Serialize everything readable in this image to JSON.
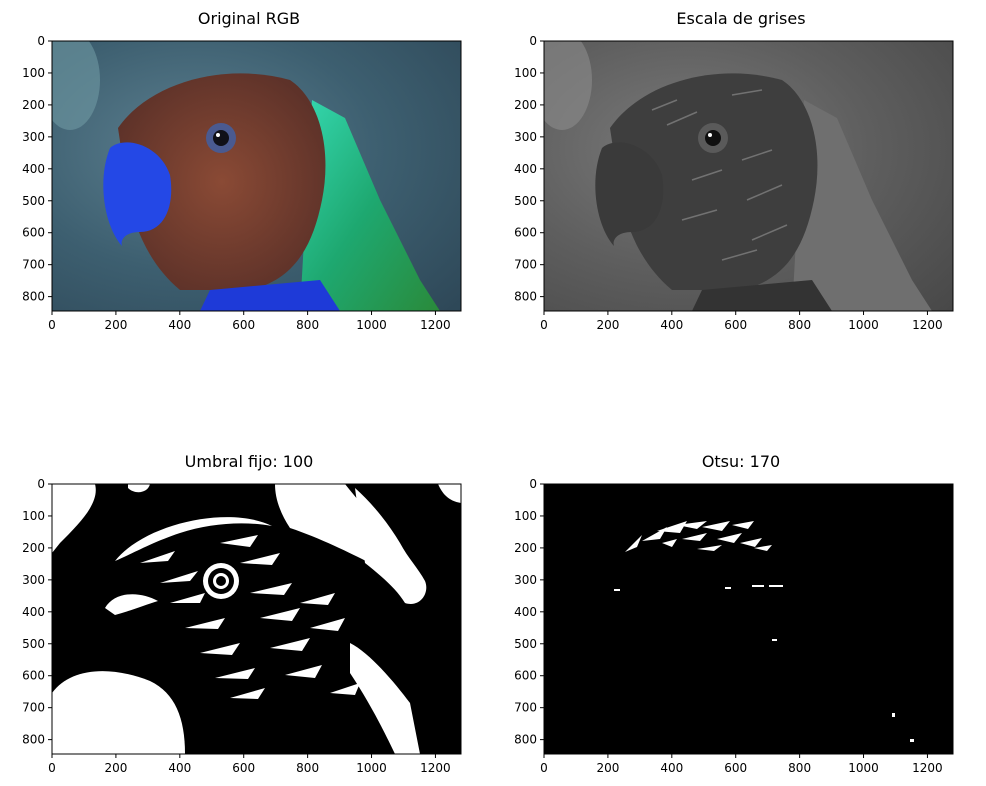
{
  "figure": {
    "panels": [
      {
        "id": "rgb",
        "title": "Original RGB"
      },
      {
        "id": "gray",
        "title": "Escala de grises"
      },
      {
        "id": "fixed",
        "title": "Umbral fijo: 100"
      },
      {
        "id": "otsu",
        "title": "Otsu: 170"
      }
    ]
  },
  "chart_data": [
    {
      "type": "image",
      "title": "Original RGB",
      "xlim": [
        0,
        1280
      ],
      "ylim": [
        845,
        0
      ],
      "xticks": [
        0,
        200,
        400,
        600,
        800,
        1000,
        1200
      ],
      "yticks": [
        0,
        100,
        200,
        300,
        400,
        500,
        600,
        700,
        800
      ],
      "colormap": "rgb"
    },
    {
      "type": "image",
      "title": "Escala de grises",
      "xlim": [
        0,
        1280
      ],
      "ylim": [
        845,
        0
      ],
      "xticks": [
        0,
        200,
        400,
        600,
        800,
        1000,
        1200
      ],
      "yticks": [
        0,
        100,
        200,
        300,
        400,
        500,
        600,
        700,
        800
      ],
      "colormap": "gray"
    },
    {
      "type": "image",
      "title": "Umbral fijo: 100",
      "xlim": [
        0,
        1280
      ],
      "ylim": [
        845,
        0
      ],
      "xticks": [
        0,
        200,
        400,
        600,
        800,
        1000,
        1200
      ],
      "yticks": [
        0,
        100,
        200,
        300,
        400,
        500,
        600,
        700,
        800
      ],
      "colormap": "binary",
      "threshold": 100
    },
    {
      "type": "image",
      "title": "Otsu: 170",
      "xlim": [
        0,
        1280
      ],
      "ylim": [
        845,
        0
      ],
      "xticks": [
        0,
        200,
        400,
        600,
        800,
        1000,
        1200
      ],
      "yticks": [
        0,
        100,
        200,
        300,
        400,
        500,
        600,
        700,
        800
      ],
      "colormap": "binary",
      "threshold": 170
    }
  ]
}
